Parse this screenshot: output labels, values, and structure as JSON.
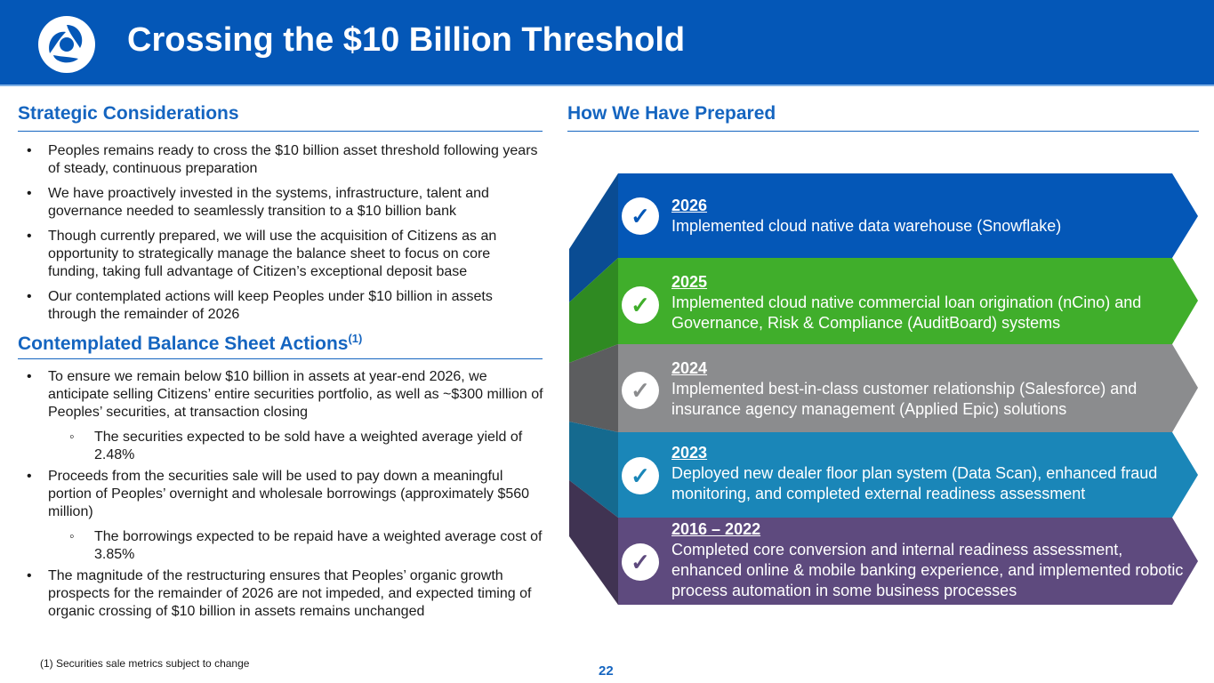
{
  "header": {
    "title": "Crossing the $10 Billion Threshold"
  },
  "left": {
    "strategic_title": "Strategic Considerations",
    "strategic_bullets": [
      "Peoples remains ready to cross the $10 billion asset threshold following years of steady, continuous preparation",
      "We have proactively invested in the systems, infrastructure, talent and governance needed to seamlessly transition to a $10 billion bank",
      "Though currently prepared, we will use the acquisition of Citizens as an opportunity to strategically manage the balance sheet to focus on core funding, taking full advantage of Citizen’s exceptional deposit base",
      "Our contemplated actions will keep Peoples under $10 billion in assets through the remainder of 2026"
    ],
    "actions_title": "Contemplated Balance Sheet Actions",
    "actions_sup": "(1)",
    "actions_bullets": [
      "To ensure we remain below $10 billion in assets at year-end 2026, we anticipate selling Citizens’ entire securities portfolio, as well as ~$300 million of Peoples’ securities, at transaction closing",
      "The securities expected to be sold have a weighted average yield of 2.48%",
      "Proceeds from the securities sale will be used to pay down a meaningful portion of Peoples’ overnight and wholesale borrowings (approximately $560 million)",
      "The borrowings expected to be repaid have a weighted average cost of 3.85%",
      "The magnitude of the restructuring ensures that Peoples’ organic growth prospects for the remainder of 2026 are not impeded, and expected timing of organic crossing of $10 billion in assets remains unchanged"
    ]
  },
  "right": {
    "title": "How We Have Prepared",
    "items": [
      {
        "year": "2026",
        "text": "Implemented cloud native data warehouse (Snowflake)",
        "color": "#0457b7",
        "check": "#0457b7"
      },
      {
        "year": "2025",
        "text": "Implemented cloud native commercial loan origination (nCino) and Governance, Risk & Compliance (AuditBoard) systems",
        "color": "#40ae2b",
        "check": "#40ae2b"
      },
      {
        "year": "2024",
        "text": "Implemented best-in-class customer relationship (Salesforce) and insurance agency management (Applied Epic) solutions",
        "color": "#8b8c8e",
        "check": "#8b8c8e"
      },
      {
        "year": "2023",
        "text": "Deployed new dealer floor plan system (Data Scan), enhanced fraud monitoring, and completed external readiness assessment",
        "color": "#1a86b8",
        "check": "#1a86b8"
      },
      {
        "year": "2016 – 2022",
        "text": "Completed core conversion and internal readiness assessment, enhanced online & mobile banking experience, and implemented robotic process automation in some business processes",
        "color": "#5e4a7e",
        "check": "#5e4a7e"
      }
    ]
  },
  "footnote": "(1) Securities sale metrics subject to change",
  "page_number": "22"
}
